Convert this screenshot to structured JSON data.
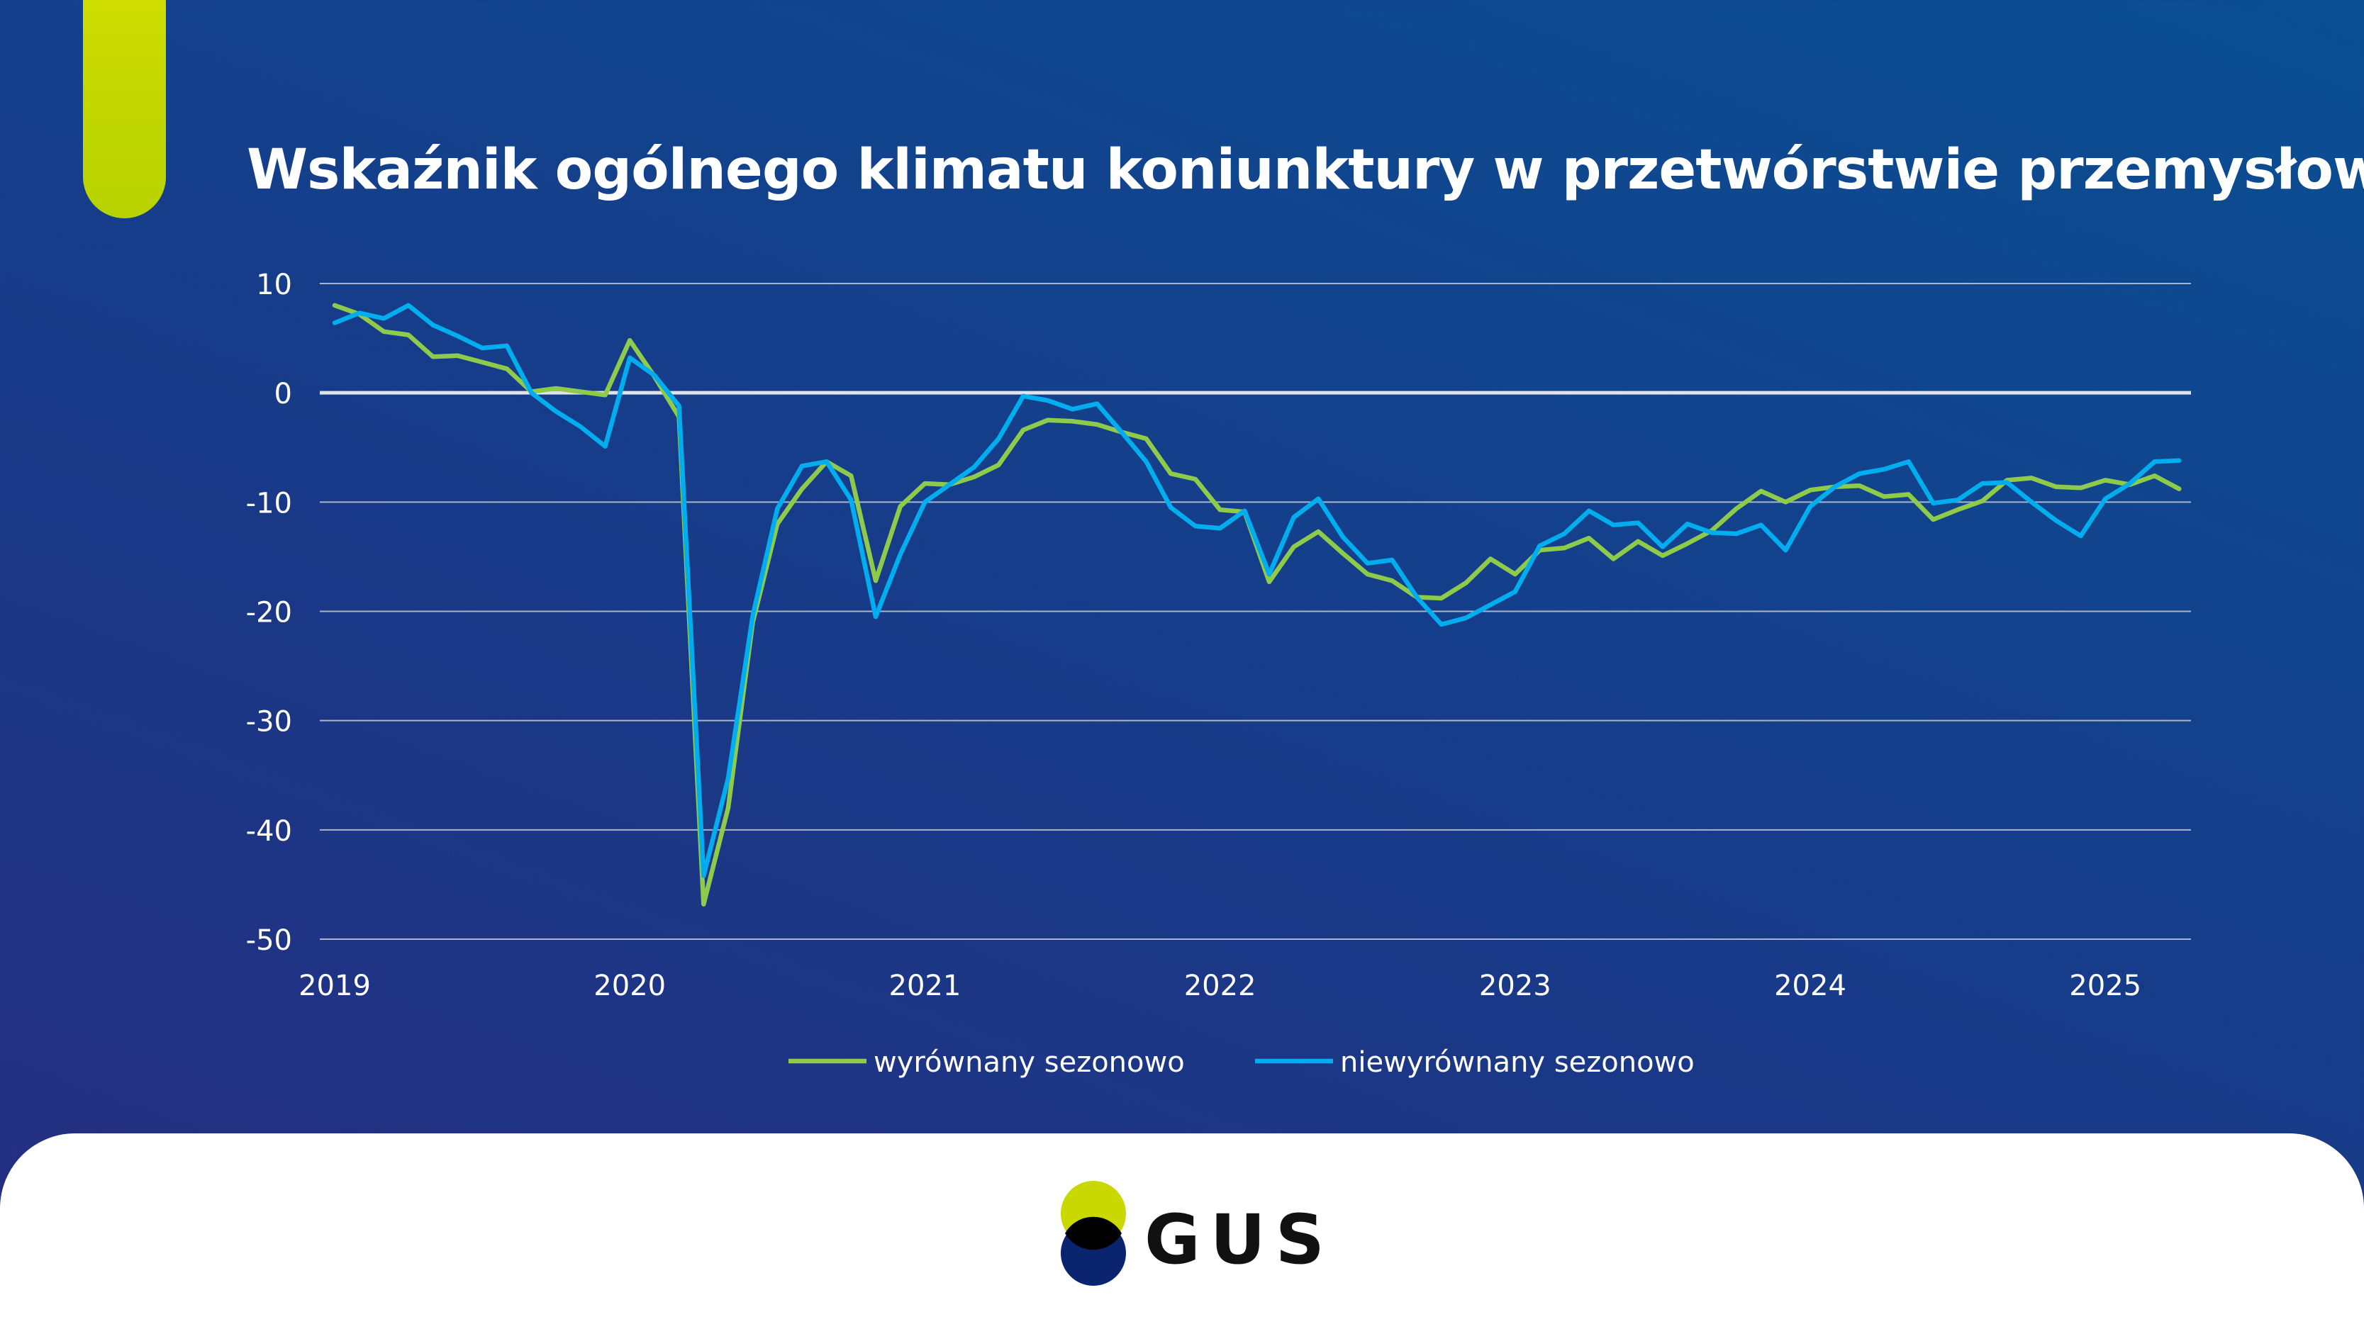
{
  "title": "Wskaźnik ogólnego klimatu koniunktury w przetwórstwie przemysłowym",
  "brand": {
    "logo_text": "GUS",
    "colors": {
      "accent_yellow": "#c8d800",
      "logo_navy": "#0b2470"
    }
  },
  "chart_data": {
    "type": "line",
    "title": "Wskaźnik ogólnego klimatu koniunktury w przetwórstwie przemysłowym",
    "xlabel": "",
    "ylabel": "",
    "x_start": "2019-01",
    "x_end": "2025-04",
    "x_frequency": "monthly",
    "x_tick_labels": [
      "2019",
      "2020",
      "2021",
      "2022",
      "2023",
      "2024",
      "2025"
    ],
    "y_tick_labels": [
      "10",
      "0",
      "-10",
      "-20",
      "-30",
      "-40",
      "-50"
    ],
    "ylim": [
      -50,
      10
    ],
    "grid": true,
    "legend_placement": "bottom",
    "series": [
      {
        "name": "wyrównany sezonowo",
        "color": "#8fcb4a",
        "values": [
          8,
          7.2,
          5.6,
          5.3,
          3.3,
          3.4,
          2.8,
          2.2,
          0.1,
          0.4,
          0.1,
          -0.2,
          4.8,
          1.5,
          -2.2,
          -46.8,
          -38,
          -21,
          -12,
          -8.8,
          -6.3,
          -7.6,
          -17.2,
          -10.4,
          -8.3,
          -8.4,
          -7.7,
          -6.6,
          -3.4,
          -2.5,
          -2.6,
          -2.9,
          -3.6,
          -4.2,
          -7.4,
          -7.9,
          -10.7,
          -10.9,
          -17.3,
          -14.1,
          -12.7,
          -14.7,
          -16.6,
          -17.2,
          -18.7,
          -18.8,
          -17.4,
          -15.2,
          -16.6,
          -14.4,
          -14.2,
          -13.3,
          -15.2,
          -13.6,
          -14.9,
          -13.8,
          -12.6,
          -10.6,
          -9.0,
          -10.0,
          -8.9,
          -8.6,
          -8.5,
          -9.5,
          -9.3,
          -11.6,
          -10.7,
          -9.9,
          -8.0,
          -7.8,
          -8.6,
          -8.7,
          -8.0,
          -8.4,
          -7.6,
          -8.8
        ]
      },
      {
        "name": "niewyrównany sezonowo",
        "color": "#00aeef",
        "values": [
          6.4,
          7.3,
          6.8,
          8.0,
          6.2,
          5.2,
          4.1,
          4.3,
          0,
          -1.7,
          -3.1,
          -4.9,
          3.2,
          1.6,
          -1.2,
          -44.2,
          -35.3,
          -20.4,
          -10.6,
          -6.7,
          -6.3,
          -9.8,
          -20.5,
          -14.8,
          -10.0,
          -8.4,
          -6.8,
          -4.2,
          -0.3,
          -0.7,
          -1.5,
          -1.0,
          -3.6,
          -6.3,
          -10.5,
          -12.2,
          -12.4,
          -10.8,
          -16.6,
          -11.4,
          -9.7,
          -13.2,
          -15.6,
          -15.3,
          -18.7,
          -21.2,
          -20.6,
          -19.4,
          -18.2,
          -14.0,
          -12.9,
          -10.8,
          -12.1,
          -11.9,
          -14.1,
          -12.0,
          -12.8,
          -12.9,
          -12.1,
          -14.4,
          -10.4,
          -8.6,
          -7.4,
          -7.0,
          -6.3,
          -10.1,
          -9.8,
          -8.3,
          -8.2,
          -10.0,
          -11.7,
          -13.1,
          -9.7,
          -8.3,
          -6.3,
          -6.2
        ]
      }
    ]
  }
}
